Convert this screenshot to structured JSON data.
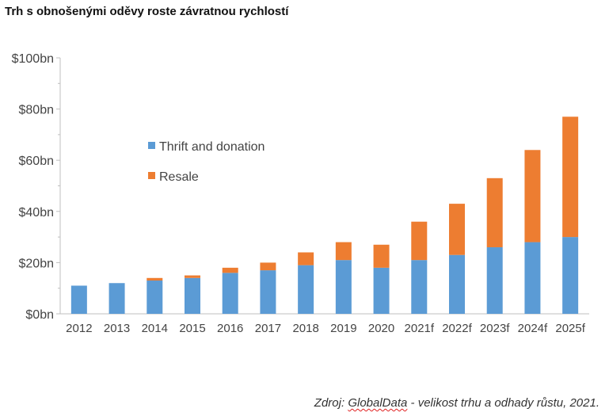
{
  "title": "Trh s obnošenými oděvy roste závratnou rychlostí",
  "source": {
    "prefix": "Zdroj: ",
    "provider": "GlobalData",
    "suffix": " - velikost trhu a odhady růstu, 2021."
  },
  "colors": {
    "thrift": "#5B9BD5",
    "resale": "#ED7D31",
    "axis": "#BFBFBF"
  },
  "chart_data": {
    "type": "bar",
    "stacked": true,
    "title": "Trh s obnošenými oděvy roste závratnou rychlostí",
    "xlabel": "",
    "ylabel": "",
    "ylim": [
      0,
      100
    ],
    "yticks": [
      0,
      20,
      40,
      60,
      80,
      100
    ],
    "ytick_labels": [
      "$0bn",
      "$20bn",
      "$40bn",
      "$60bn",
      "$80bn",
      "$100bn"
    ],
    "grid": false,
    "legend_position": "upper-left",
    "categories": [
      "2012",
      "2013",
      "2014",
      "2015",
      "2016",
      "2017",
      "2018",
      "2019",
      "2020",
      "2021f",
      "2022f",
      "2023f",
      "2024f",
      "2025f"
    ],
    "series": [
      {
        "name": "Thrift and donation",
        "color": "#5B9BD5",
        "values": [
          11,
          12,
          13,
          14,
          16,
          17,
          19,
          21,
          18,
          21,
          23,
          26,
          28,
          30
        ]
      },
      {
        "name": "Resale",
        "color": "#ED7D31",
        "values": [
          0,
          0,
          1,
          1,
          2,
          3,
          5,
          7,
          9,
          15,
          20,
          27,
          36,
          47
        ]
      }
    ]
  }
}
